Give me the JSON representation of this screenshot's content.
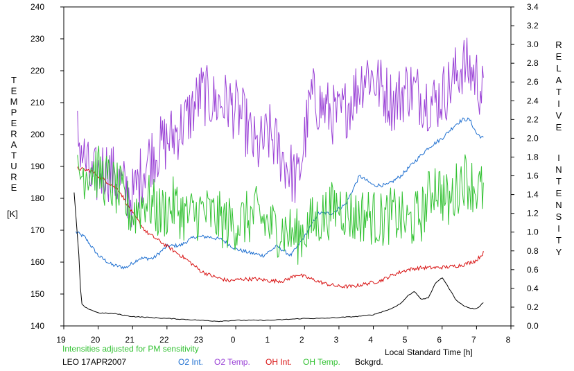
{
  "chart_data": {
    "type": "line",
    "left_axis_label": "TEMPERATURE",
    "left_axis_unit": "[K]",
    "right_axis_label": "RELATIVE INTENSITY",
    "x_label": "Local Standard Time [h]",
    "x_ticks": [
      "19",
      "20",
      "21",
      "22",
      "23",
      "0",
      "1",
      "2",
      "3",
      "4",
      "5",
      "6",
      "7",
      "8"
    ],
    "left_ticks": [
      140,
      150,
      160,
      170,
      180,
      190,
      200,
      210,
      220,
      230,
      240
    ],
    "right_ticks": [
      "0.0",
      "0.2",
      "0.4",
      "0.6",
      "0.8",
      "1.0",
      "1.2",
      "1.4",
      "1.6",
      "1.8",
      "2.0",
      "2.2",
      "2.4",
      "2.6",
      "2.8",
      "3.0",
      "3.2",
      "3.4"
    ],
    "xlim": [
      -5,
      8
    ],
    "ylim_left": [
      140,
      240
    ],
    "ylim_right": [
      0,
      3.4
    ],
    "note": "Intensities adjusted for PM sensitivity",
    "station": "LEO 17APR2007",
    "series": [
      {
        "name": "O2 Int.",
        "color": "#1e6fd0",
        "axis": "right",
        "x": [
          -4.65,
          -4.4,
          -4.0,
          -3.6,
          -3.2,
          -2.8,
          -2.4,
          -2.0,
          -1.6,
          -1.2,
          -0.8,
          -0.4,
          0.0,
          0.4,
          0.8,
          1.2,
          1.6,
          2.0,
          2.4,
          2.8,
          3.2,
          3.6,
          4.0,
          4.4,
          4.8,
          5.2,
          5.6,
          6.0,
          6.4,
          6.6,
          6.8,
          7.0,
          7.2
        ],
        "values": [
          1.0,
          0.95,
          0.75,
          0.65,
          0.62,
          0.72,
          0.72,
          0.85,
          0.86,
          0.95,
          0.95,
          0.92,
          0.82,
          0.78,
          0.75,
          0.85,
          0.75,
          0.95,
          1.2,
          1.2,
          1.3,
          1.6,
          1.5,
          1.5,
          1.6,
          1.75,
          1.9,
          2.0,
          2.15,
          2.2,
          2.2,
          2.05,
          2.0
        ]
      },
      {
        "name": "O2 Temp.",
        "color": "#9a42d6",
        "axis": "left",
        "x": [
          -4.6,
          -4.2,
          -3.8,
          -3.4,
          -3.0,
          -2.6,
          -2.2,
          -1.8,
          -1.4,
          -1.0,
          -0.6,
          -0.2,
          0.2,
          0.6,
          1.0,
          1.4,
          1.8,
          2.2,
          2.6,
          3.0,
          3.4,
          3.8,
          4.2,
          4.6,
          5.0,
          5.4,
          5.8,
          6.2,
          6.6,
          7.0,
          7.2
        ],
        "values": [
          200,
          185,
          190,
          185,
          180,
          192,
          196,
          200,
          205,
          213,
          210,
          210,
          205,
          195,
          200,
          192,
          185,
          212,
          208,
          205,
          212,
          220,
          215,
          210,
          215,
          212,
          210,
          215,
          222,
          218,
          212
        ]
      },
      {
        "name": "OH Int.",
        "color": "#d81010",
        "axis": "right",
        "x": [
          -4.6,
          -4.2,
          -3.8,
          -3.4,
          -3.0,
          -2.6,
          -2.2,
          -1.8,
          -1.4,
          -1.0,
          -0.6,
          -0.2,
          0.2,
          0.6,
          1.0,
          1.4,
          1.8,
          2.2,
          2.6,
          3.0,
          3.4,
          3.8,
          4.2,
          4.6,
          5.0,
          5.4,
          5.8,
          6.2,
          6.6,
          7.0,
          7.2
        ],
        "values": [
          1.68,
          1.65,
          1.55,
          1.45,
          1.2,
          1.0,
          0.9,
          0.8,
          0.7,
          0.58,
          0.52,
          0.48,
          0.5,
          0.5,
          0.48,
          0.48,
          0.55,
          0.5,
          0.45,
          0.42,
          0.42,
          0.45,
          0.48,
          0.55,
          0.6,
          0.62,
          0.62,
          0.63,
          0.65,
          0.7,
          0.78
        ]
      },
      {
        "name": "OH Temp.",
        "color": "#33c233",
        "axis": "left",
        "x": [
          -4.6,
          -4.2,
          -3.8,
          -3.4,
          -3.0,
          -2.6,
          -2.2,
          -1.8,
          -1.4,
          -1.0,
          -0.6,
          -0.2,
          0.2,
          0.6,
          1.0,
          1.4,
          1.8,
          2.2,
          2.6,
          3.0,
          3.4,
          3.8,
          4.2,
          4.6,
          5.0,
          5.4,
          5.8,
          6.2,
          6.6,
          7.0,
          7.2
        ],
        "values": [
          187,
          190,
          186,
          182,
          175,
          180,
          175,
          178,
          174,
          176,
          174,
          172,
          173,
          175,
          171,
          170,
          168,
          172,
          175,
          178,
          174,
          175,
          173,
          175,
          172,
          175,
          185,
          178,
          187,
          183,
          182
        ]
      },
      {
        "name": "Bckgrd.",
        "color": "#000000",
        "axis": "right",
        "x": [
          -4.7,
          -4.55,
          -4.5,
          -4.4,
          -4.0,
          -3.5,
          -3.0,
          -2.5,
          -2.0,
          -1.5,
          -1.0,
          -0.5,
          0.0,
          0.5,
          1.0,
          1.5,
          2.0,
          2.5,
          3.0,
          3.5,
          4.0,
          4.5,
          4.8,
          5.0,
          5.2,
          5.4,
          5.6,
          5.8,
          6.0,
          6.2,
          6.4,
          6.6,
          6.8,
          7.0,
          7.2
        ],
        "values": [
          1.42,
          0.7,
          0.25,
          0.2,
          0.14,
          0.13,
          0.1,
          0.09,
          0.08,
          0.07,
          0.06,
          0.05,
          0.06,
          0.06,
          0.06,
          0.07,
          0.08,
          0.08,
          0.09,
          0.1,
          0.12,
          0.18,
          0.24,
          0.32,
          0.37,
          0.28,
          0.3,
          0.45,
          0.52,
          0.4,
          0.28,
          0.22,
          0.19,
          0.18,
          0.25
        ]
      }
    ]
  }
}
